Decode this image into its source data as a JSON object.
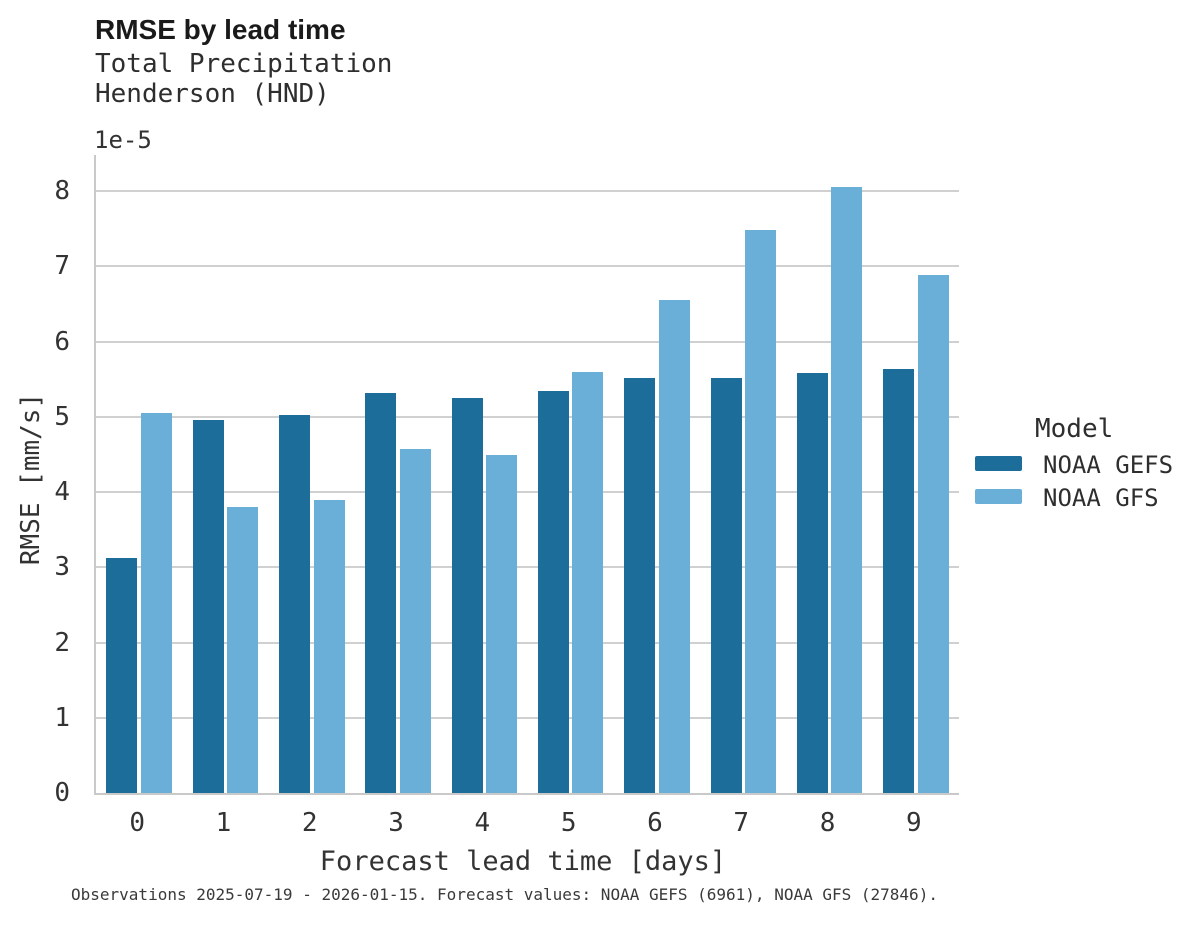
{
  "chart_data": {
    "type": "bar",
    "title": "RMSE by lead time",
    "subtitle_line1": "Total Precipitation",
    "subtitle_line2": "Henderson (HND)",
    "y_offset_label": "1e-5",
    "xlabel": "Forecast lead time [days]",
    "ylabel": "RMSE [mm/s]",
    "categories": [
      "0",
      "1",
      "2",
      "3",
      "4",
      "5",
      "6",
      "7",
      "8",
      "9"
    ],
    "series": [
      {
        "name": "NOAA GEFS",
        "color": "#1d6d9b",
        "values": [
          3.12,
          4.96,
          5.02,
          5.32,
          5.25,
          5.34,
          5.52,
          5.52,
          5.58,
          5.64
        ]
      },
      {
        "name": "NOAA GFS",
        "color": "#6aafd8",
        "values": [
          5.05,
          3.8,
          3.89,
          4.57,
          4.49,
          5.6,
          6.55,
          7.48,
          8.05,
          6.88
        ]
      }
    ],
    "yticks": [
      0,
      1,
      2,
      3,
      4,
      5,
      6,
      7,
      8
    ],
    "ylim": [
      0,
      8.48
    ],
    "grid": "horizontal",
    "legend": {
      "title": "Model",
      "position": "right-center"
    },
    "caption": "Observations 2025-07-19 - 2026-01-15. Forecast values: NOAA GEFS (6961), NOAA GFS (27846)."
  },
  "colors": {
    "gridline": "#d0d0d0",
    "spine": "#c9c9c9",
    "title_text": "#1a1a1a",
    "body_text": "#333333"
  }
}
